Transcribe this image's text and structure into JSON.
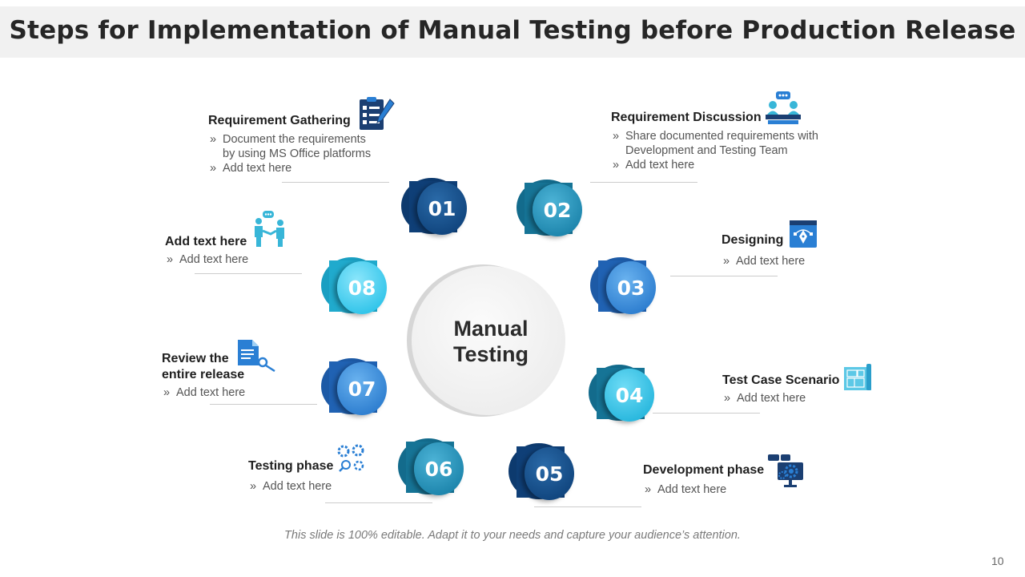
{
  "title": "Steps for Implementation of Manual Testing before Production Release",
  "center": {
    "line1": "Manual",
    "line2": "Testing"
  },
  "steps": [
    {
      "number": "01",
      "heading": "Requirement Gathering",
      "bullets": [
        "Document the requirements by using MS Office platforms",
        "Add text here"
      ],
      "icon": "checklist-pen-icon"
    },
    {
      "number": "02",
      "heading": "Requirement Discussion",
      "bullets": [
        "Share documented requirements with Development and Testing Team",
        "Add text here"
      ],
      "icon": "team-discussion-icon"
    },
    {
      "number": "03",
      "heading": "Designing",
      "bullets": [
        "Add text here"
      ],
      "icon": "design-pen-tool-icon"
    },
    {
      "number": "04",
      "heading": "Test Case Scenario",
      "bullets": [
        "Add text here"
      ],
      "icon": "blueprint-icon"
    },
    {
      "number": "05",
      "heading": "Development phase",
      "bullets": [
        "Add text here"
      ],
      "icon": "monitor-gear-icon"
    },
    {
      "number": "06",
      "heading": "Testing phase",
      "bullets": [
        "Add text here"
      ],
      "icon": "gears-search-icon"
    },
    {
      "number": "07",
      "heading": "Review the entire release",
      "bullets": [
        "Add text here"
      ],
      "icon": "document-search-icon"
    },
    {
      "number": "08",
      "heading": "Add text here",
      "bullets": [
        "Add text here"
      ],
      "icon": "people-chat-icon"
    }
  ],
  "footer": "This slide is 100% editable. Adapt it to your needs and capture your audience’s attention.",
  "page_number": "10",
  "colors": {
    "navy": "#0f3f77",
    "teal": "#1e86ad",
    "royal": "#2f7fd0",
    "cyan": "#33c5ea",
    "icon_navy": "#1b3f72",
    "icon_blue": "#2a7fd4",
    "icon_cyan": "#38b6d8"
  }
}
